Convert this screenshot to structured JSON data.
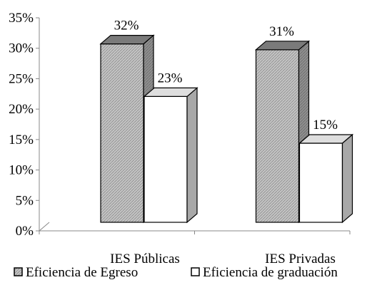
{
  "chart_data": {
    "type": "bar",
    "categories": [
      "IES Públicas",
      "IES Privadas"
    ],
    "series": [
      {
        "name": "Eficiencia de Egreso",
        "values": [
          32,
          31
        ],
        "labels": [
          "32%",
          "31%"
        ],
        "fill": "hatched-gray"
      },
      {
        "name": "Eficiencia de graduación",
        "values": [
          23,
          15
        ],
        "labels": [
          "23%",
          "15%"
        ],
        "fill": "#ffffff"
      }
    ],
    "ylim": [
      0,
      35
    ],
    "y_ticks": [
      "0%",
      "5%",
      "10%",
      "15%",
      "20%",
      "25%",
      "30%",
      "35%"
    ],
    "title": "",
    "xlabel": "",
    "ylabel": "",
    "grid": false,
    "legend_position": "bottom",
    "style": "3d-columns"
  },
  "colors": {
    "hatched_front": "#c4c4c4",
    "hatched_side": "#9a9a9a",
    "hatched_top": "#7a7a7a",
    "white_side": "#a8a8a8",
    "white_top": "#dedede",
    "axis": "#888888"
  }
}
